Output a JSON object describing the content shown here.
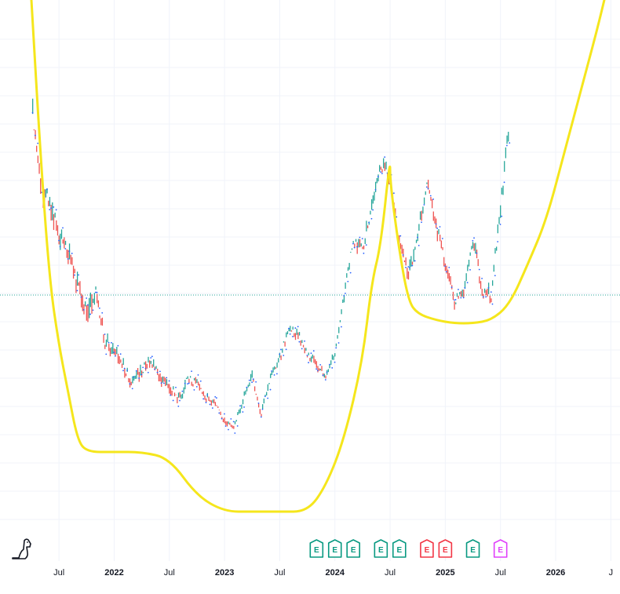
{
  "chart_data": {
    "type": "line",
    "x_axis": {
      "ticks": [
        "Jul",
        "2022",
        "Jul",
        "2023",
        "Jul",
        "2024",
        "Jul",
        "2025",
        "Jul",
        "2026",
        "J"
      ],
      "range": [
        "2021-03",
        "2026-08"
      ]
    },
    "y_axis": {
      "visible": false,
      "grid": true
    },
    "colors": {
      "up": "#26a69a",
      "down": "#ef5350",
      "dots": "#2962ff",
      "pattern": "#f5e61c",
      "price_line": "#26a69a",
      "earnings_green": "#089981",
      "earnings_red": "#f23645",
      "earnings_purple": "#e040fb"
    },
    "series": [
      {
        "kind": "price",
        "x": [
          "2021-04",
          "2021-05",
          "2021-06",
          "2021-07",
          "2021-08",
          "2021-09",
          "2021-10",
          "2021-11",
          "2021-12",
          "2022-01",
          "2022-02",
          "2022-03",
          "2022-04",
          "2022-05",
          "2022-06",
          "2022-07",
          "2022-08",
          "2022-09",
          "2022-10",
          "2022-11",
          "2022-12",
          "2023-01",
          "2023-02",
          "2023-03",
          "2023-04",
          "2023-05",
          "2023-06",
          "2023-07",
          "2023-08",
          "2023-09",
          "2023-10",
          "2023-11",
          "2023-12",
          "2024-01",
          "2024-02",
          "2024-03",
          "2024-04",
          "2024-05",
          "2024-06",
          "2024-07",
          "2024-08",
          "2024-09",
          "2024-10",
          "2024-11",
          "2024-12",
          "2025-01",
          "2025-02",
          "2025-03",
          "2025-04",
          "2025-05",
          "2025-06",
          "2025-07",
          "2025-08"
        ],
        "y": [
          98,
          72,
          65,
          55,
          50,
          40,
          30,
          37,
          21,
          19,
          13,
          8,
          12,
          15,
          10,
          6,
          3,
          9,
          8,
          3,
          1,
          -4,
          -6,
          2,
          11,
          -2,
          10,
          16,
          25,
          23,
          17,
          14,
          10,
          18,
          36,
          54,
          50,
          64,
          78,
          74,
          52,
          42,
          55,
          72,
          58,
          46,
          34,
          37,
          54,
          38,
          36,
          64,
          92
        ],
        "candle_high": [
          106,
          92,
          82,
          70,
          64,
          58,
          50,
          46,
          36,
          28,
          22,
          20,
          22,
          24,
          20,
          16,
          12,
          16,
          14,
          8,
          4,
          2,
          -2,
          8,
          16,
          6,
          14,
          22,
          30,
          28,
          24,
          20,
          14,
          24,
          44,
          64,
          62,
          72,
          86,
          82,
          62,
          52,
          64,
          80,
          66,
          54,
          40,
          44,
          62,
          48,
          44,
          74,
          98
        ],
        "candle_low": [
          86,
          62,
          56,
          46,
          42,
          32,
          22,
          28,
          16,
          14,
          8,
          4,
          8,
          10,
          6,
          2,
          -2,
          4,
          4,
          -1,
          -3,
          -6,
          -8,
          -3,
          6,
          -5,
          6,
          12,
          20,
          18,
          12,
          10,
          6,
          14,
          30,
          46,
          44,
          56,
          70,
          66,
          46,
          36,
          48,
          64,
          50,
          40,
          28,
          32,
          46,
          32,
          30,
          56,
          84
        ],
        "units": "index"
      },
      {
        "kind": "pattern",
        "x": [
          "2021-04",
          "2021-05",
          "2021-06",
          "2021-07",
          "2021-08",
          "2021-09",
          "2021-10",
          "2022-01",
          "2022-04",
          "2022-07",
          "2022-10",
          "2023-01",
          "2023-04",
          "2023-07",
          "2023-10",
          "2023-12",
          "2024-02",
          "2024-04",
          "2024-05",
          "2024-06",
          "2024-07",
          "2024-07",
          "2024-08",
          "2024-09",
          "2024-10",
          "2024-12",
          "2025-02",
          "2025-04",
          "2025-06",
          "2025-08",
          "2025-10",
          "2025-12",
          "2026-02",
          "2026-04",
          "2026-06",
          "2026-08"
        ],
        "y": [
          130,
          80,
          40,
          20,
          5,
          -10,
          -14,
          -14,
          -14,
          -16,
          -28,
          -33,
          -33,
          -33,
          -33,
          -25,
          -10,
          15,
          40,
          52,
          80,
          72,
          50,
          34,
          30,
          28,
          27,
          27,
          28,
          33,
          46,
          60,
          82,
          104,
          126,
          152
        ]
      }
    ],
    "price_line": {
      "y": 36
    },
    "earnings_events": [
      {
        "date": "2023-11",
        "label": "E",
        "color": "#089981"
      },
      {
        "date": "2024-01",
        "label": "E",
        "color": "#089981"
      },
      {
        "date": "2024-03",
        "label": "E",
        "color": "#089981"
      },
      {
        "date": "2024-06",
        "label": "E",
        "color": "#089981"
      },
      {
        "date": "2024-08",
        "label": "E",
        "color": "#089981"
      },
      {
        "date": "2024-11",
        "label": "E",
        "color": "#f23645"
      },
      {
        "date": "2025-01",
        "label": "E",
        "color": "#f23645"
      },
      {
        "date": "2025-04",
        "label": "E",
        "color": "#089981"
      },
      {
        "date": "2025-07",
        "label": "E",
        "color": "#e040fb"
      }
    ],
    "grid": true,
    "legend": "none"
  }
}
